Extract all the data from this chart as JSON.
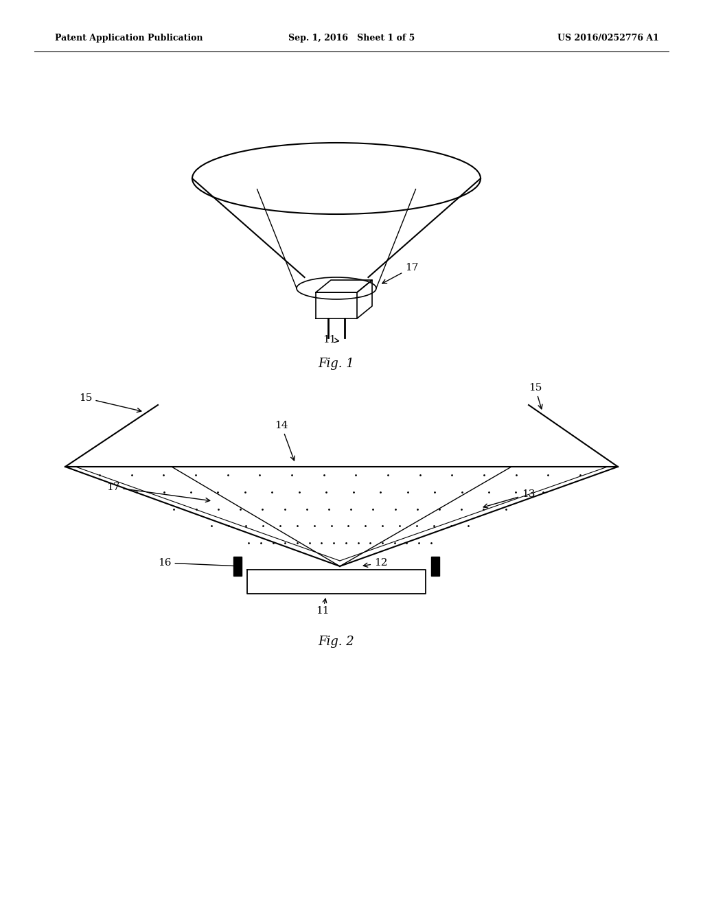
{
  "bg_color": "#ffffff",
  "line_color": "#000000",
  "header": {
    "left": "Patent Application Publication",
    "center": "Sep. 1, 2016   Sheet 1 of 5",
    "right": "US 2016/0252776 A1"
  },
  "fig1_label": "Fig. 1",
  "fig2_label": "Fig. 2"
}
